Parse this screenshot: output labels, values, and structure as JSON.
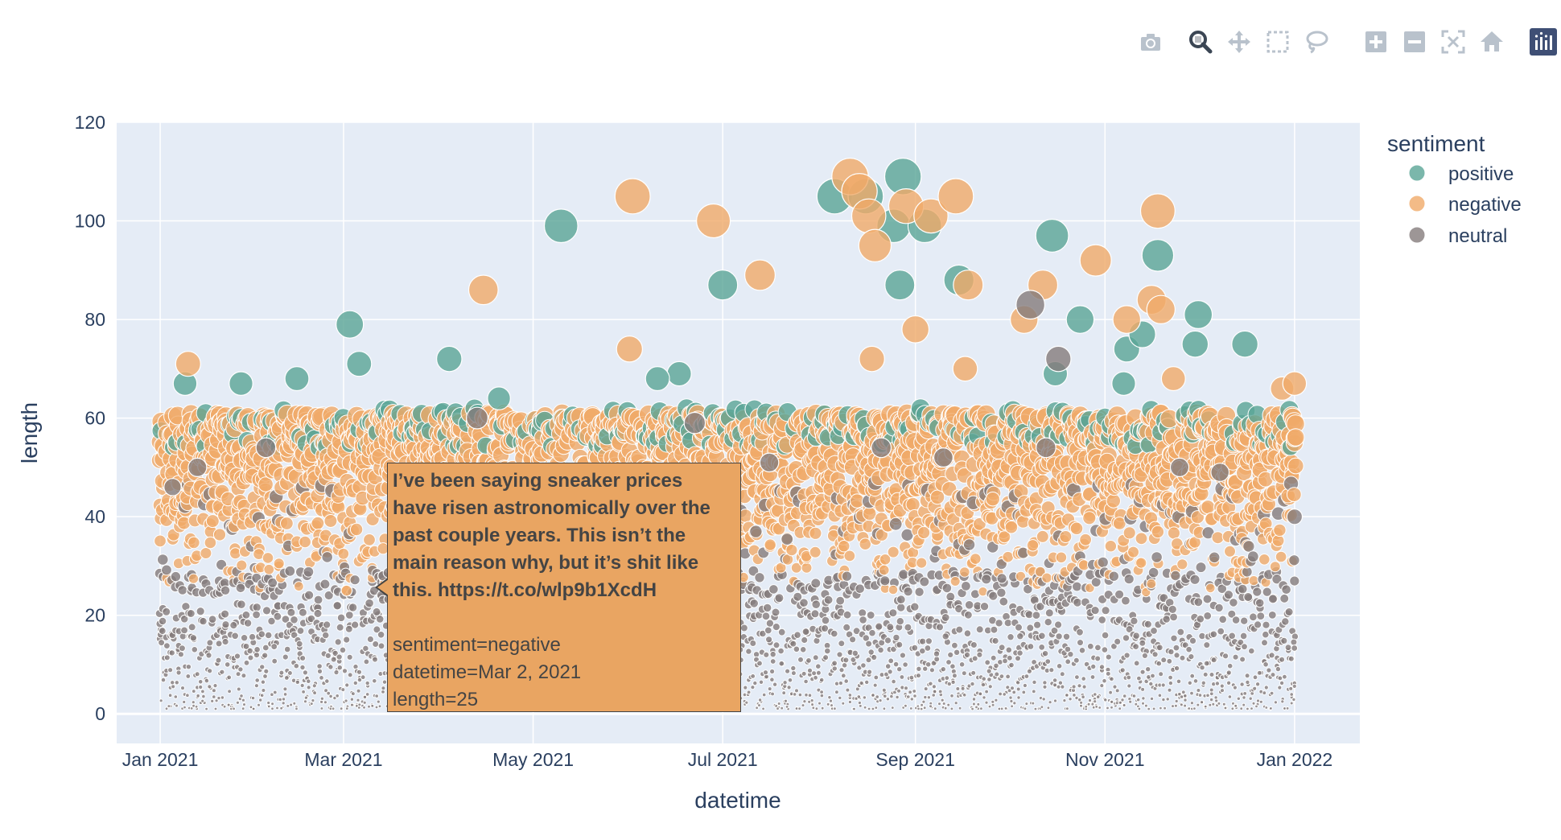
{
  "colors": {
    "positive": "#5aa596",
    "negative": "#f0aa69",
    "neutral": "#857c7c",
    "plot_bg": "#e5ecf6",
    "grid": "#ffffff",
    "axis_text": "#2a3f5f",
    "hover_bg": "#e9a562"
  },
  "modebar": {
    "buttons": [
      {
        "name": "camera-icon",
        "title": "Download plot as a png"
      },
      {
        "name": "zoom-icon",
        "title": "Zoom"
      },
      {
        "name": "pan-icon",
        "title": "Pan"
      },
      {
        "name": "box-select-icon",
        "title": "Box Select"
      },
      {
        "name": "lasso-select-icon",
        "title": "Lasso Select"
      },
      {
        "name": "zoom-in-icon",
        "title": "Zoom in"
      },
      {
        "name": "zoom-out-icon",
        "title": "Zoom out"
      },
      {
        "name": "autoscale-icon",
        "title": "Autoscale"
      },
      {
        "name": "reset-axes-icon",
        "title": "Reset axes"
      },
      {
        "name": "plotly-logo-icon",
        "title": "Produced with Plotly"
      }
    ]
  },
  "chart_data": {
    "type": "scatter",
    "xlabel": "datetime",
    "ylabel": "length",
    "xlim": [
      "2020-12-18",
      "2022-01-22"
    ],
    "ylim": [
      -6,
      120
    ],
    "x_ticks": [
      {
        "date": "2021-01-01",
        "label": "Jan 2021"
      },
      {
        "date": "2021-03-01",
        "label": "Mar 2021"
      },
      {
        "date": "2021-05-01",
        "label": "May 2021"
      },
      {
        "date": "2021-07-01",
        "label": "Jul 2021"
      },
      {
        "date": "2021-09-01",
        "label": "Sep 2021"
      },
      {
        "date": "2021-11-01",
        "label": "Nov 2021"
      },
      {
        "date": "2022-01-01",
        "label": "Jan 2022"
      }
    ],
    "y_ticks": [
      0,
      20,
      40,
      60,
      80,
      100,
      120
    ],
    "grid": true,
    "legend": {
      "title": "sentiment",
      "placement": "right"
    },
    "series": [
      {
        "name": "positive",
        "points": [
          {
            "x": "2021-03-03",
            "y": 79
          },
          {
            "x": "2021-03-06",
            "y": 71
          },
          {
            "x": "2021-04-04",
            "y": 72
          },
          {
            "x": "2021-05-10",
            "y": 99
          },
          {
            "x": "2021-06-17",
            "y": 69
          },
          {
            "x": "2021-06-10",
            "y": 68
          },
          {
            "x": "2021-07-01",
            "y": 87
          },
          {
            "x": "2021-08-06",
            "y": 105
          },
          {
            "x": "2021-08-16",
            "y": 105
          },
          {
            "x": "2021-08-25",
            "y": 99
          },
          {
            "x": "2021-08-27",
            "y": 87
          },
          {
            "x": "2021-08-28",
            "y": 109
          },
          {
            "x": "2021-09-04",
            "y": 99
          },
          {
            "x": "2021-09-15",
            "y": 88
          },
          {
            "x": "2021-10-15",
            "y": 97
          },
          {
            "x": "2021-10-16",
            "y": 69
          },
          {
            "x": "2021-10-24",
            "y": 80
          },
          {
            "x": "2021-11-08",
            "y": 74
          },
          {
            "x": "2021-11-07",
            "y": 67
          },
          {
            "x": "2021-11-13",
            "y": 77
          },
          {
            "x": "2021-11-18",
            "y": 93
          },
          {
            "x": "2021-11-30",
            "y": 75
          },
          {
            "x": "2021-12-01",
            "y": 81
          },
          {
            "x": "2021-12-16",
            "y": 75
          },
          {
            "x": "2021-01-09",
            "y": 67
          },
          {
            "x": "2021-01-27",
            "y": 67
          },
          {
            "x": "2021-02-14",
            "y": 68
          },
          {
            "x": "2021-04-20",
            "y": 64
          }
        ]
      },
      {
        "name": "negative",
        "points": [
          {
            "x": "2021-01-10",
            "y": 71
          },
          {
            "x": "2021-04-15",
            "y": 86
          },
          {
            "x": "2021-06-02",
            "y": 105
          },
          {
            "x": "2021-06-01",
            "y": 74
          },
          {
            "x": "2021-06-28",
            "y": 100
          },
          {
            "x": "2021-07-13",
            "y": 89
          },
          {
            "x": "2021-08-11",
            "y": 109
          },
          {
            "x": "2021-08-14",
            "y": 106
          },
          {
            "x": "2021-08-17",
            "y": 101
          },
          {
            "x": "2021-08-19",
            "y": 95
          },
          {
            "x": "2021-08-18",
            "y": 72
          },
          {
            "x": "2021-08-29",
            "y": 103
          },
          {
            "x": "2021-09-01",
            "y": 78
          },
          {
            "x": "2021-09-06",
            "y": 101
          },
          {
            "x": "2021-09-14",
            "y": 105
          },
          {
            "x": "2021-09-18",
            "y": 87
          },
          {
            "x": "2021-09-17",
            "y": 70
          },
          {
            "x": "2021-10-06",
            "y": 80
          },
          {
            "x": "2021-10-12",
            "y": 87
          },
          {
            "x": "2021-10-29",
            "y": 92
          },
          {
            "x": "2021-11-08",
            "y": 80
          },
          {
            "x": "2021-11-16",
            "y": 84
          },
          {
            "x": "2021-11-19",
            "y": 82
          },
          {
            "x": "2021-11-18",
            "y": 102
          },
          {
            "x": "2021-11-23",
            "y": 68
          },
          {
            "x": "2021-12-28",
            "y": 66
          },
          {
            "x": "2022-01-01",
            "y": 67
          },
          {
            "x": "2021-03-02",
            "y": 25
          }
        ]
      },
      {
        "name": "neutral",
        "points": [
          {
            "x": "2021-01-13",
            "y": 50
          },
          {
            "x": "2021-01-05",
            "y": 46
          },
          {
            "x": "2021-02-04",
            "y": 54
          },
          {
            "x": "2021-04-13",
            "y": 60
          },
          {
            "x": "2021-06-22",
            "y": 59
          },
          {
            "x": "2021-07-16",
            "y": 51
          },
          {
            "x": "2021-08-21",
            "y": 54
          },
          {
            "x": "2021-09-10",
            "y": 52
          },
          {
            "x": "2021-10-08",
            "y": 83
          },
          {
            "x": "2021-10-17",
            "y": 72
          },
          {
            "x": "2021-10-13",
            "y": 54
          },
          {
            "x": "2021-12-08",
            "y": 49
          },
          {
            "x": "2021-11-25",
            "y": 50
          },
          {
            "x": "2022-01-01",
            "y": 40
          }
        ]
      }
    ],
    "hover": {
      "text": "I’ve been saying sneaker prices\nhave risen astronomically over the\npast couple years. This isn’t the\nmain reason why, but it’s shit like\nthis. https://t.co/wlp9b1XcdH",
      "sentiment": "sentiment=negative",
      "datetime": "datetime=Mar 2, 2021",
      "length": "length=25"
    }
  }
}
